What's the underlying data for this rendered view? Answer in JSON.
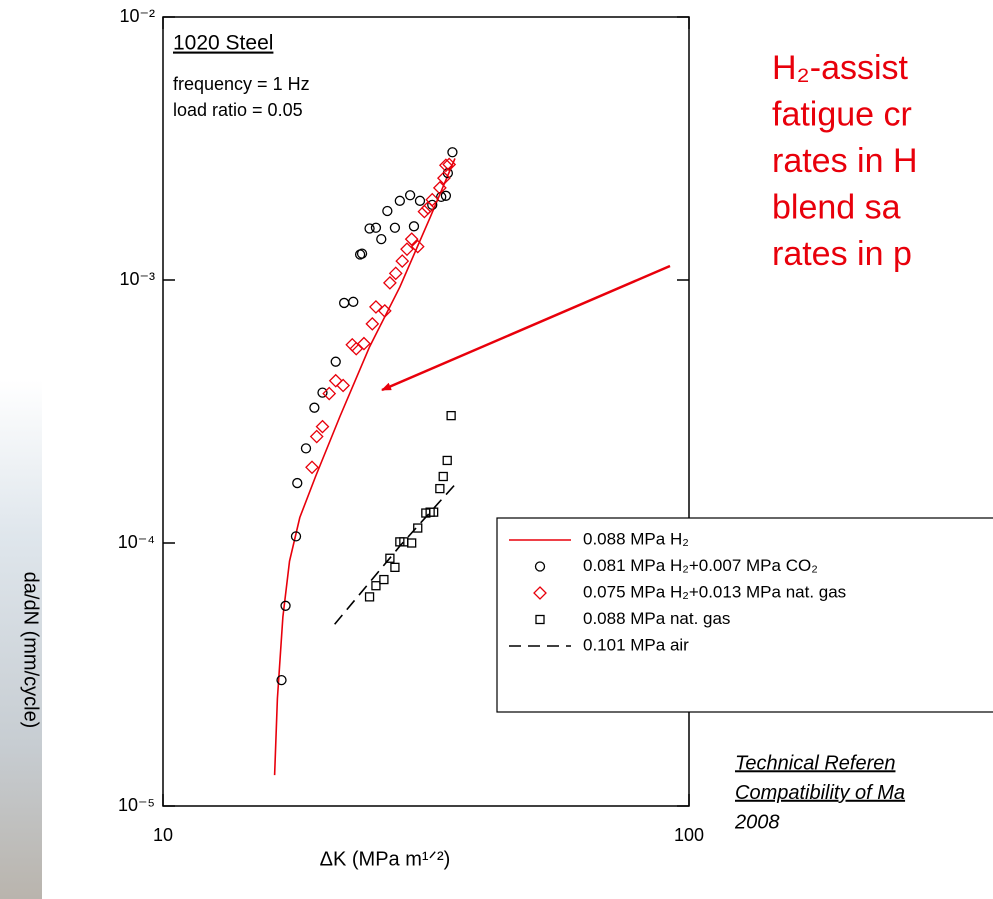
{
  "chart_data": {
    "type": "scatter",
    "x_label": "ΔK  (MPa m¹ᐟ²)",
    "y_label": "da/dN  (mm/cycle)",
    "xlim": [
      10,
      100
    ],
    "ylim": [
      1e-05,
      0.01
    ],
    "log_x": true,
    "log_y": true,
    "xticks": [
      10,
      100
    ],
    "yticks": [
      {
        "value": 1e-05,
        "label": "10⁻⁵"
      },
      {
        "value": 0.0001,
        "label": "10⁻⁴"
      },
      {
        "value": 0.001,
        "label": "10⁻³"
      },
      {
        "value": 0.01,
        "label": "10⁻²"
      }
    ],
    "info": [
      "1020 Steel",
      "frequency = 1 Hz",
      "load ratio = 0.05"
    ],
    "callout": [
      "H₂-assist",
      "fatigue cr",
      "rates in H",
      "blend sa",
      "rates in p"
    ],
    "reference": [
      "Technical Referen",
      "Compatibility of Ma",
      "2008"
    ],
    "legend": "lower right",
    "series": [
      {
        "name": "0.088 MPa H₂",
        "color": "#e8000b",
        "marker": "line",
        "dash": false,
        "x": [
          16.3,
          16.5,
          16.9,
          17.4,
          18.2,
          19.5,
          21.7,
          24.7,
          28.2,
          32.2,
          35.9
        ],
        "values": [
          1.31e-05,
          2.56e-05,
          5.23e-05,
          8.53e-05,
          0.000125,
          0.000179,
          0.000303,
          0.000557,
          0.00094,
          0.00173,
          0.0029
        ]
      },
      {
        "name": "0.081 MPa H₂+0.007 MPa CO₂",
        "color": "#000000",
        "marker": "circle",
        "x": [
          16.8,
          17.1,
          17.9,
          18.0,
          18.7,
          19.4,
          20.1,
          21.3,
          22.1,
          23.0,
          23.7,
          23.9,
          24.7,
          25.4,
          26.0,
          26.7,
          27.6,
          28.2,
          29.5,
          30.0,
          30.8,
          32.5,
          33.8,
          34.5,
          34.8,
          35.5
        ],
        "values": [
          3.01e-05,
          5.77e-05,
          0.000106,
          0.000169,
          0.000229,
          0.000327,
          0.000373,
          0.000489,
          0.000818,
          0.000826,
          0.00125,
          0.00126,
          0.00157,
          0.00158,
          0.00143,
          0.00183,
          0.00158,
          0.002,
          0.0021,
          0.0016,
          0.002,
          0.00193,
          0.00207,
          0.00209,
          0.00255,
          0.00306
        ]
      },
      {
        "name": "0.075 MPa H₂+0.013 MPa nat. gas",
        "color": "#e8000b",
        "marker": "diamond",
        "x": [
          19.2,
          19.6,
          20.1,
          20.7,
          21.3,
          22.0,
          22.9,
          23.3,
          24.1,
          25.0,
          25.4,
          26.4,
          27.0,
          27.7,
          28.5,
          29.1,
          29.7,
          30.5,
          31.4,
          31.9,
          32.5,
          33.6,
          34.2,
          34.5,
          35.0
        ],
        "values": [
          0.000194,
          0.000254,
          0.000277,
          0.00037,
          0.000414,
          0.000397,
          0.000567,
          0.000548,
          0.000573,
          0.000681,
          0.00079,
          0.000763,
          0.000975,
          0.00106,
          0.00118,
          0.00131,
          0.00143,
          0.00134,
          0.00182,
          0.00188,
          0.00202,
          0.00224,
          0.00244,
          0.00273,
          0.00275
        ]
      },
      {
        "name": "0.088 MPa nat. gas",
        "color": "#000000",
        "marker": "square",
        "x": [
          24.7,
          25.4,
          26.3,
          27.0,
          27.6,
          28.2,
          28.7,
          29.7,
          30.5,
          31.6,
          32.2,
          32.7,
          33.6,
          34.1,
          34.7,
          35.3
        ],
        "values": [
          6.24e-05,
          6.88e-05,
          7.26e-05,
          8.75e-05,
          8.08e-05,
          0.000101,
          0.000101,
          0.0001,
          0.000114,
          0.00013,
          0.000131,
          0.000131,
          0.000161,
          0.000179,
          0.000206,
          0.000305
        ]
      },
      {
        "name": "0.101 MPa air",
        "color": "#000000",
        "marker": "line",
        "dash": true,
        "x": [
          21.2,
          28.2,
          36.4
        ],
        "values": [
          4.91e-05,
          9.73e-05,
          0.000172
        ]
      }
    ]
  }
}
